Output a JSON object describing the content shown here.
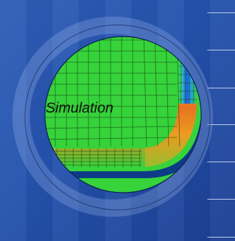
{
  "caption": "Simulation",
  "colors": {
    "background": "#2452ad",
    "mesh_base": "#36d33a",
    "mesh_line": "#143d14",
    "hot": "#e4311f",
    "cool": "#1f5be4"
  },
  "icon": "fem-mesh-simulation"
}
